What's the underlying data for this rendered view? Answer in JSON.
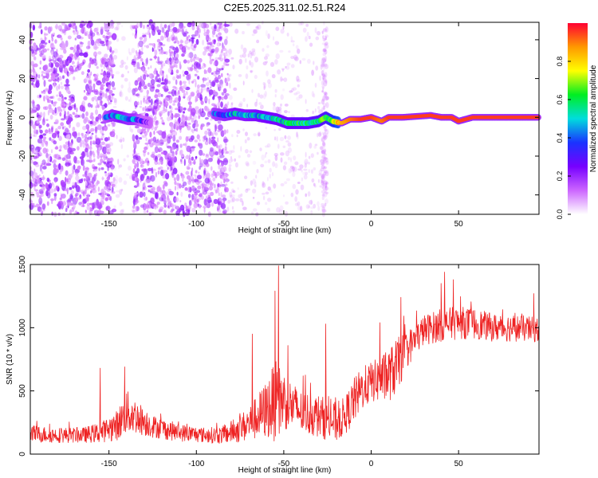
{
  "title": "C2E5.2025.311.02.51.R24",
  "colors": {
    "snr_line": "#ee2222",
    "background": "#ffffff"
  },
  "chart_data": [
    {
      "type": "heatmap",
      "xlabel": "Height of straight line (km)",
      "ylabel": "Frequency (Hz)",
      "xlim": [
        -195,
        96
      ],
      "ylim": [
        -50,
        49
      ],
      "xticks": [
        -150,
        -100,
        -50,
        0,
        50
      ],
      "xtick_labels": [
        "-150",
        "-100",
        "-50",
        "0",
        "50"
      ],
      "yticks": [
        -40,
        -20,
        0,
        20,
        40
      ],
      "ytick_labels": [
        "-40",
        "-20",
        "0",
        "20",
        "40"
      ],
      "colorbar": {
        "label": "Normalized spectral amplitude",
        "ticks": [
          0.0,
          0.2,
          0.4,
          0.6,
          0.8
        ],
        "tick_labels": [
          "0.0",
          "0.2",
          "0.4",
          "0.6",
          "0.8"
        ],
        "range": [
          0,
          1
        ],
        "colormap": [
          "#ffffff",
          "#cc66ff",
          "#7700ff",
          "#1a33ff",
          "#00dddd",
          "#00ee22",
          "#ffff00",
          "#ff9900",
          "#ff0033"
        ]
      },
      "noise_regions": [
        {
          "x": [
            -195,
            -147
          ],
          "density": "dense",
          "opacity": 0.9
        },
        {
          "x": [
            -147,
            -136
          ],
          "density": "sparse",
          "opacity": 0.35
        },
        {
          "x": [
            -136,
            -82
          ],
          "density": "dense",
          "opacity": 0.85
        },
        {
          "x": [
            -82,
            -26
          ],
          "density": "sparse",
          "opacity": 0.4
        },
        {
          "x": [
            -28,
            -25
          ],
          "density": "streak",
          "opacity": 0.45
        }
      ],
      "signal_ridge": [
        {
          "x": -152,
          "y": 0.0,
          "amp": 0.3
        },
        {
          "x": -148,
          "y": 1.0,
          "amp": 0.4
        },
        {
          "x": -143,
          "y": 0.0,
          "amp": 0.45
        },
        {
          "x": -139,
          "y": -1.0,
          "amp": 0.4
        },
        {
          "x": -135,
          "y": -1.0,
          "amp": 0.38
        },
        {
          "x": -131,
          "y": -2.0,
          "amp": 0.25
        },
        {
          "x": -126,
          "y": -3.0,
          "amp": 0.25
        },
        {
          "x": -90,
          "y": 2.0,
          "amp": 0.35
        },
        {
          "x": -84,
          "y": 1.0,
          "amp": 0.4
        },
        {
          "x": -78,
          "y": 2.0,
          "amp": 0.45
        },
        {
          "x": -72,
          "y": 1.0,
          "amp": 0.45
        },
        {
          "x": -66,
          "y": 1.0,
          "amp": 0.48
        },
        {
          "x": -60,
          "y": 0.0,
          "amp": 0.5
        },
        {
          "x": -54,
          "y": -1.0,
          "amp": 0.5
        },
        {
          "x": -48,
          "y": -3.0,
          "amp": 0.52
        },
        {
          "x": -42,
          "y": -3.0,
          "amp": 0.55
        },
        {
          "x": -36,
          "y": -3.0,
          "amp": 0.55
        },
        {
          "x": -30,
          "y": -2.0,
          "amp": 0.58
        },
        {
          "x": -26,
          "y": 0.0,
          "amp": 0.6
        },
        {
          "x": -22,
          "y": -2.0,
          "amp": 0.7
        },
        {
          "x": -17,
          "y": -3.0,
          "amp": 0.85
        },
        {
          "x": -12,
          "y": -1.0,
          "amp": 0.9
        },
        {
          "x": -6,
          "y": -1.0,
          "amp": 0.95
        },
        {
          "x": 0,
          "y": 0.0,
          "amp": 0.95
        },
        {
          "x": 6,
          "y": -2.0,
          "amp": 0.9
        },
        {
          "x": 10,
          "y": 0.0,
          "amp": 0.95
        },
        {
          "x": 18,
          "y": 0.0,
          "amp": 0.95
        },
        {
          "x": 26,
          "y": 0.5,
          "amp": 0.95
        },
        {
          "x": 34,
          "y": 1.0,
          "amp": 0.95
        },
        {
          "x": 40,
          "y": 0.0,
          "amp": 0.95
        },
        {
          "x": 46,
          "y": 0.0,
          "amp": 0.95
        },
        {
          "x": 50,
          "y": -2.0,
          "amp": 0.95
        },
        {
          "x": 54,
          "y": -1.0,
          "amp": 0.95
        },
        {
          "x": 58,
          "y": 0.0,
          "amp": 0.95
        },
        {
          "x": 66,
          "y": 0.0,
          "amp": 0.95
        },
        {
          "x": 76,
          "y": 0.0,
          "amp": 0.95
        },
        {
          "x": 86,
          "y": 0.0,
          "amp": 0.95
        },
        {
          "x": 96,
          "y": 0.0,
          "amp": 0.95
        }
      ]
    },
    {
      "type": "line",
      "xlabel": "Height of straight line (km)",
      "ylabel": "SNR (10 * v/v)",
      "xlim": [
        -195,
        96
      ],
      "ylim": [
        0,
        1500
      ],
      "xticks": [
        -150,
        -100,
        -50,
        0,
        50
      ],
      "xtick_labels": [
        "-150",
        "-100",
        "-50",
        "0",
        "50"
      ],
      "yticks": [
        0,
        500,
        1000,
        1500
      ],
      "ytick_labels": [
        "0",
        "500",
        "1000",
        "1500"
      ],
      "grid": false,
      "series": [
        {
          "color": "#ee2222",
          "envelope": {
            "x": [
              -195,
              -180,
              -165,
              -155,
              -145,
              -140,
              -135,
              -125,
              -110,
              -95,
              -85,
              -75,
              -68,
              -60,
              -55,
              -50,
              -45,
              -40,
              -30,
              -20,
              -15,
              -10,
              -5,
              0,
              5,
              10,
              15,
              20,
              25,
              30,
              40,
              50,
              60,
              70,
              80,
              90,
              96
            ],
            "mean": [
              160,
              150,
              150,
              170,
              230,
              330,
              300,
              220,
              170,
              150,
              150,
              200,
              260,
              350,
              420,
              430,
              380,
              330,
              300,
              250,
              300,
              420,
              520,
              570,
              590,
              620,
              700,
              820,
              900,
              980,
              1020,
              1040,
              1030,
              1000,
              1000,
              990,
              980
            ],
            "spread": [
              70,
              60,
              60,
              80,
              120,
              180,
              140,
              90,
              70,
              60,
              70,
              110,
              150,
              230,
              320,
              240,
              190,
              170,
              170,
              160,
              150,
              180,
              170,
              160,
              180,
              210,
              220,
              150,
              130,
              120,
              130,
              130,
              120,
              110,
              110,
              100,
              100
            ]
          },
          "peaks": [
            {
              "x": -53,
              "y": 1490
            },
            {
              "x": -55,
              "y": 1290
            },
            {
              "x": -68,
              "y": 950
            },
            {
              "x": -26,
              "y": 1030
            },
            {
              "x": -141,
              "y": 690
            },
            {
              "x": -155,
              "y": 680
            },
            {
              "x": 5,
              "y": 1040
            },
            {
              "x": 17,
              "y": 1240
            },
            {
              "x": 42,
              "y": 1440
            },
            {
              "x": 40,
              "y": 1350
            },
            {
              "x": 47,
              "y": 1380
            },
            {
              "x": 93,
              "y": 1270
            }
          ]
        }
      ]
    }
  ]
}
